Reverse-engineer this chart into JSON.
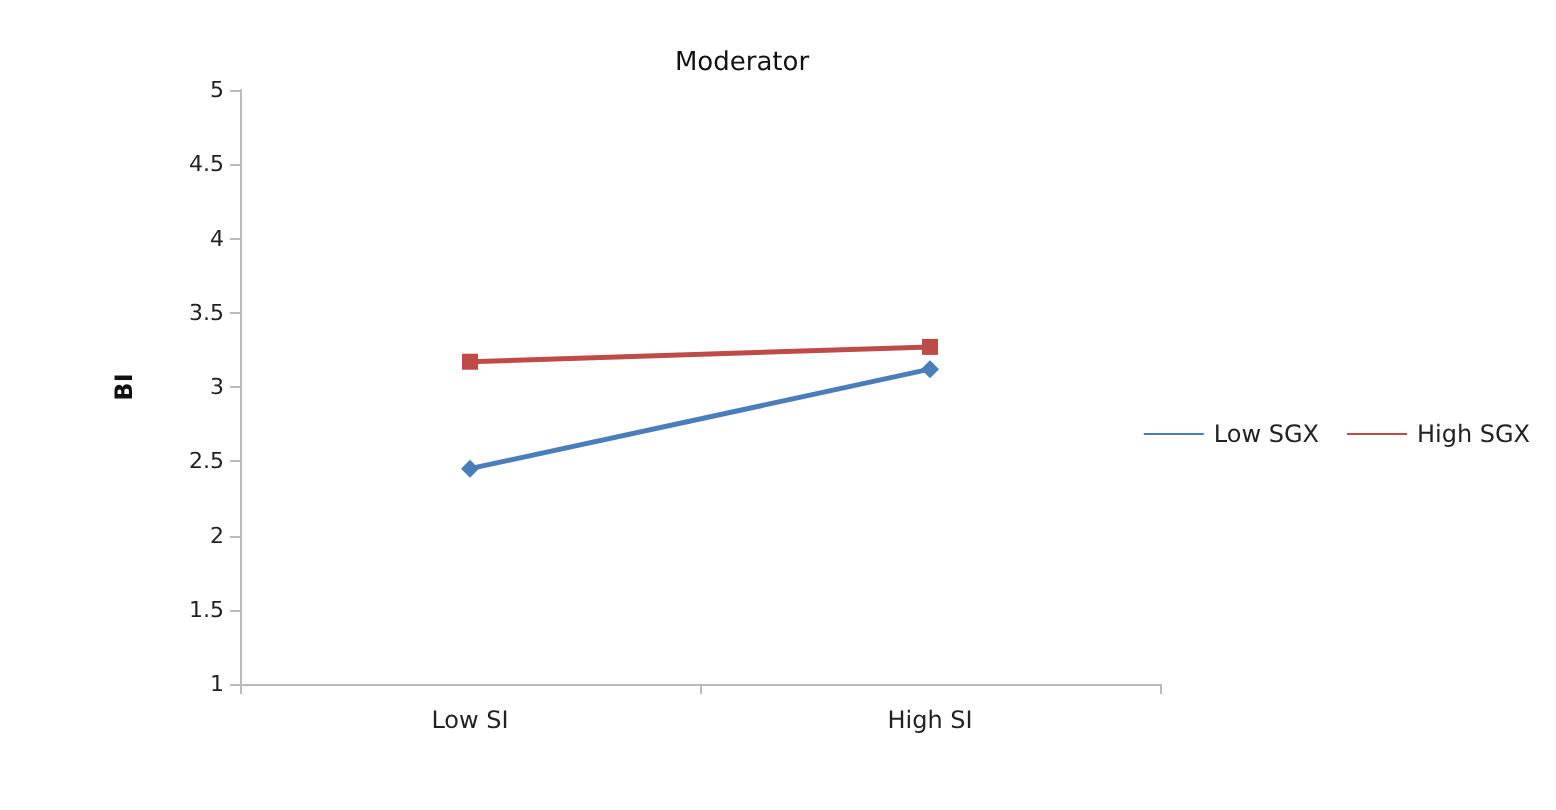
{
  "chart_data": {
    "type": "line",
    "title": "Moderator",
    "ylabel": "BI",
    "categories": [
      "Low SI",
      "High SI"
    ],
    "series": [
      {
        "name": "Low SGX",
        "color": "#4a7ebb",
        "marker": "diamond",
        "values": [
          2.45,
          3.12
        ]
      },
      {
        "name": "High SGX",
        "color": "#be4b48",
        "marker": "square",
        "values": [
          3.17,
          3.27
        ]
      }
    ],
    "ylim": [
      1,
      5
    ],
    "yticks": [
      1,
      1.5,
      2,
      2.5,
      3,
      3.5,
      4,
      4.5,
      5
    ],
    "grid": false,
    "legend": "right"
  }
}
